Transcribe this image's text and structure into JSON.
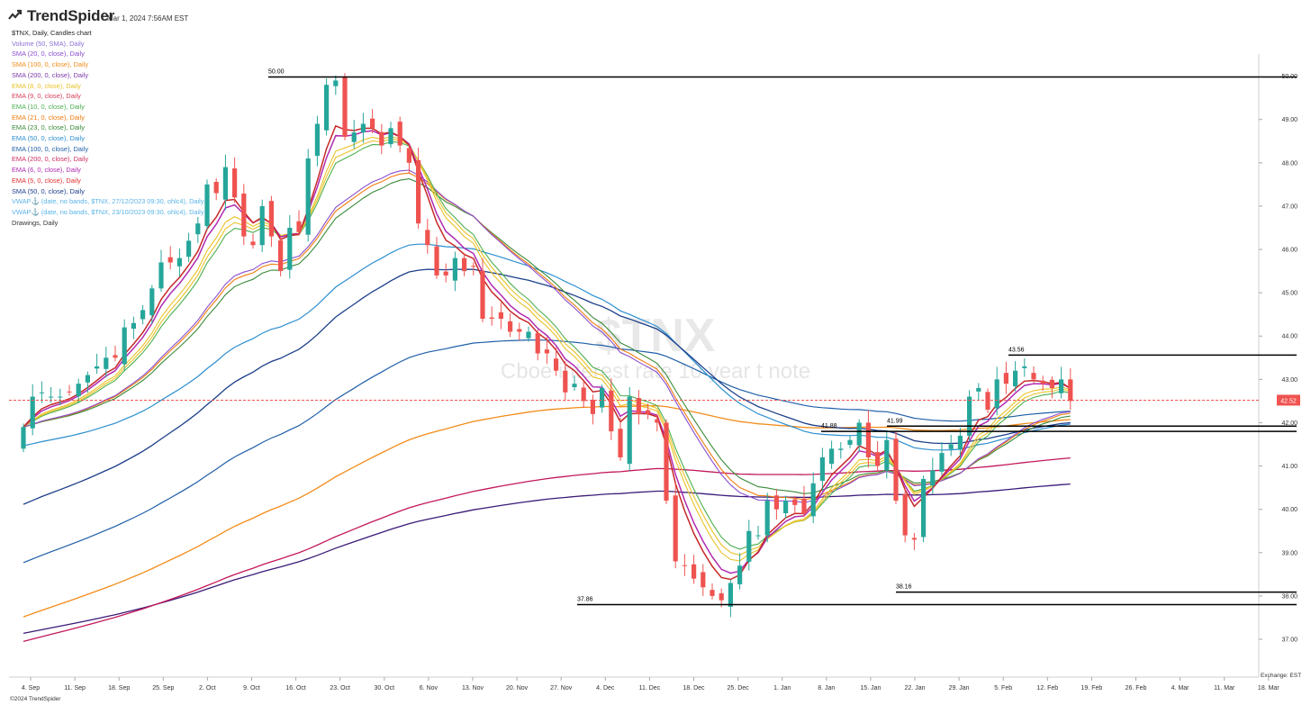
{
  "header": {
    "brand": "TrendSpider",
    "timestamp": "Mar 1, 2024 7:56AM EST"
  },
  "legend": {
    "title": "$TNX, Daily, Candles chart",
    "indicators": [
      {
        "label": "Volume (50, SMA), Daily",
        "color": "#8a6fd6"
      },
      {
        "label": "SMA (20, 0, close), Daily",
        "color": "#8a4fd0"
      },
      {
        "label": "SMA (100, 0, close), Daily",
        "color": "#f28c1a"
      },
      {
        "label": "SMA (200, 0, close), Daily",
        "color": "#7b3aa8"
      },
      {
        "label": "EMA (8, 0, close), Daily",
        "color": "#e8c228"
      },
      {
        "label": "EMA (9, 0, close), Daily",
        "color": "#d9405a"
      },
      {
        "label": "EMA (10, 0, close), Daily",
        "color": "#4caf50"
      },
      {
        "label": "EMA (21, 0, close), Daily",
        "color": "#ef7d10"
      },
      {
        "label": "EMA (23, 0, close), Daily",
        "color": "#3a8a3a"
      },
      {
        "label": "EMA (50, 0, close), Daily",
        "color": "#2d8fd0"
      },
      {
        "label": "EMA (100, 0, close), Daily",
        "color": "#1f5fa8"
      },
      {
        "label": "EMA (200, 0, close), Daily",
        "color": "#d03060"
      },
      {
        "label": "EMA (6, 0, close), Daily",
        "color": "#b02ab0"
      },
      {
        "label": "EMA (5, 0, close), Daily",
        "color": "#e0302e"
      },
      {
        "label": "SMA (50, 0, close), Daily",
        "color": "#1c3f8a"
      },
      {
        "label": "VWAP⚓ (date, no bands, $TNX, 27/12/2023 09:30, ohlc4), Daily",
        "color": "#5ab4e8"
      },
      {
        "label": "VWAP⚓ (date, no bands, $TNX, 23/10/2023 09:30, ohlc4), Daily",
        "color": "#5ab4e8"
      },
      {
        "label": "Drawings, Daily",
        "color": "#333333"
      }
    ]
  },
  "watermark": {
    "symbol": "$TNX",
    "name": "Cboe interest rate 10 year t note"
  },
  "footer": {
    "copyright": "©2024 TrendSpider",
    "exchange": "Exchange: EST"
  },
  "colors": {
    "up": "#26a69a",
    "down": "#ef5350",
    "price_line": "#ef5350",
    "sma100": "#f28c1a",
    "sma200": "#3b1a78",
    "ema200": "#c2185b",
    "ema100": "#1f5fa8",
    "ema50": "#2d8fd0",
    "sma50": "#1c3f8a"
  },
  "chart_data": {
    "type": "candlestick",
    "title": "$TNX, Daily, Candles chart",
    "ylim": [
      36.6,
      50.2
    ],
    "y_ticks": [
      "37.00",
      "38.00",
      "39.00",
      "40.00",
      "41.00",
      "42.00",
      "43.00",
      "44.00",
      "45.00",
      "46.00",
      "47.00",
      "48.00",
      "49.00",
      "50.00"
    ],
    "x_ticks": [
      "4. Sep",
      "11. Sep",
      "18. Sep",
      "25. Sep",
      "2. Oct",
      "9. Oct",
      "16. Oct",
      "23. Oct",
      "30. Oct",
      "6. Nov",
      "13. Nov",
      "20. Nov",
      "27. Nov",
      "4. Dec",
      "11. Dec",
      "18. Dec",
      "25. Dec",
      "1. Jan",
      "8. Jan",
      "15. Jan",
      "22. Jan",
      "29. Jan",
      "5. Feb",
      "12. Feb",
      "19. Feb",
      "26. Feb",
      "4. Mar",
      "11. Mar",
      "18. Mar"
    ],
    "current_price": "42.52",
    "close": [
      41.9,
      42.6,
      42.7,
      42.6,
      42.6,
      42.7,
      42.9,
      43.1,
      43.3,
      43.5,
      43.5,
      44.2,
      44.3,
      44.6,
      45.1,
      45.7,
      45.7,
      45.8,
      46.2,
      46.6,
      47.5,
      47.3,
      47.9,
      47.2,
      46.3,
      46.1,
      47.0,
      46.3,
      45.5,
      46.5,
      46.4,
      48.1,
      48.9,
      49.8,
      49.9,
      48.6,
      48.7,
      48.9,
      48.8,
      48.4,
      48.8,
      48.4,
      48.0,
      46.6,
      46.1,
      45.4,
      45.4,
      45.8,
      45.5,
      45.6,
      44.4,
      44.4,
      44.4,
      44.1,
      44.1,
      44.1,
      43.6,
      43.6,
      43.2,
      42.7,
      42.9,
      42.5,
      42.2,
      42.8,
      41.8,
      41.2,
      42.6,
      42.2,
      42.2,
      42.0,
      40.2,
      38.8,
      38.7,
      38.4,
      38.2,
      38.0,
      37.9,
      38.3,
      38.7,
      39.5,
      39.4,
      40.2,
      40.0,
      40.2,
      40.1,
      39.9,
      40.6,
      41.2,
      41.4,
      41.4,
      41.6,
      42.0,
      41.2,
      41.0,
      41.6,
      40.2,
      39.4,
      39.3,
      40.7,
      40.9,
      41.3,
      41.5,
      41.7,
      42.6,
      42.8,
      42.3,
      43.0,
      42.9,
      43.2,
      43.3,
      43.0,
      42.9,
      42.8,
      43.0,
      42.5
    ],
    "levels": [
      {
        "label": "50.00",
        "value": 49.98
      },
      {
        "label": "43.56",
        "value": 43.56
      },
      {
        "label": "41.88",
        "value": 41.8
      },
      {
        "label": "41.99",
        "value": 41.92
      },
      {
        "label": "38.16",
        "value": 38.09
      },
      {
        "label": "37.86",
        "value": 37.8
      }
    ],
    "series": [
      {
        "name": "SMA (100, 0, close), Daily",
        "color": "#f28c1a"
      },
      {
        "name": "SMA (200, 0, close), Daily",
        "color": "#3b1a78"
      },
      {
        "name": "EMA (200, 0, close), Daily",
        "color": "#c2185b"
      },
      {
        "name": "EMA (100, 0, close), Daily",
        "color": "#1f5fa8"
      },
      {
        "name": "EMA (50, 0, close), Daily",
        "color": "#2d8fd0"
      },
      {
        "name": "SMA (50, 0, close), Daily",
        "color": "#1c3f8a"
      }
    ]
  }
}
